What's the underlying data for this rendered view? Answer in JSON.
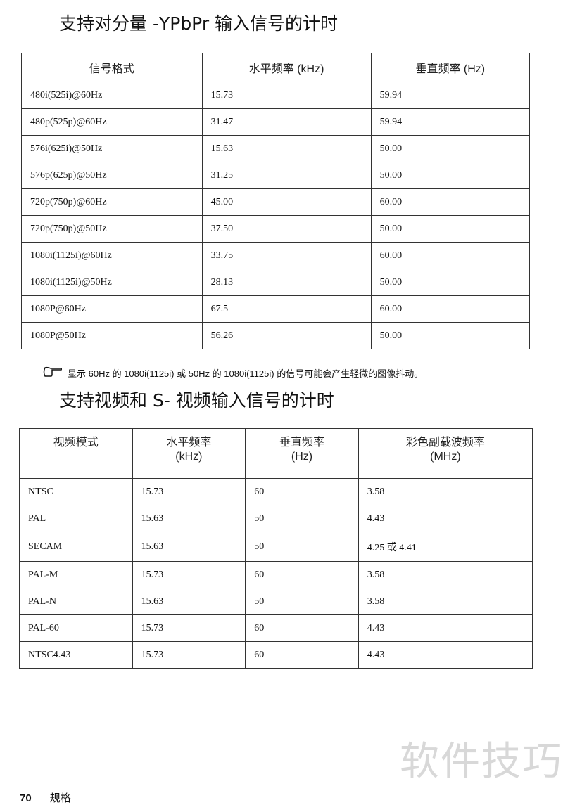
{
  "section1": {
    "title": "支持对分量 -YPbPr 输入信号的计时",
    "headers": [
      "信号格式",
      "水平频率 (kHz)",
      "垂直频率 (Hz)"
    ],
    "rows": [
      [
        "480i(525i)@60Hz",
        "15.73",
        "59.94"
      ],
      [
        "480p(525p)@60Hz",
        "31.47",
        "59.94"
      ],
      [
        "576i(625i)@50Hz",
        "15.63",
        "50.00"
      ],
      [
        "576p(625p)@50Hz",
        "31.25",
        "50.00"
      ],
      [
        "720p(750p)@60Hz",
        "45.00",
        "60.00"
      ],
      [
        "720p(750p)@50Hz",
        "37.50",
        "50.00"
      ],
      [
        "1080i(1125i)@60Hz",
        "33.75",
        "60.00"
      ],
      [
        "1080i(1125i)@50Hz",
        "28.13",
        "50.00"
      ],
      [
        "1080P@60Hz",
        "67.5",
        "60.00"
      ],
      [
        "1080P@50Hz",
        "56.26",
        "50.00"
      ]
    ]
  },
  "note": {
    "icon": "pointing-hand-icon",
    "text": "显示 60Hz 的 1080i(1125i) 或 50Hz 的 1080i(1125i) 的信号可能会产生轻微的图像抖动。"
  },
  "section2": {
    "title": "支持视频和 S- 视频输入信号的计时",
    "headers": [
      [
        "视频模式",
        ""
      ],
      [
        "水平频率",
        "(kHz)"
      ],
      [
        "垂直频率",
        "(Hz)"
      ],
      [
        "彩色副载波频率",
        "(MHz)"
      ]
    ],
    "rows": [
      [
        "NTSC",
        "15.73",
        "60",
        "3.58"
      ],
      [
        "PAL",
        "15.63",
        "50",
        "4.43"
      ],
      [
        "SECAM",
        "15.63",
        "50",
        "4.25 或 4.41"
      ],
      [
        "PAL-M",
        "15.73",
        "60",
        "3.58"
      ],
      [
        "PAL-N",
        "15.63",
        "50",
        "3.58"
      ],
      [
        "PAL-60",
        "15.73",
        "60",
        "4.43"
      ],
      [
        "NTSC4.43",
        "15.73",
        "60",
        "4.43"
      ]
    ]
  },
  "watermark": "软件技巧",
  "footer": {
    "page": "70",
    "section": "规格"
  }
}
